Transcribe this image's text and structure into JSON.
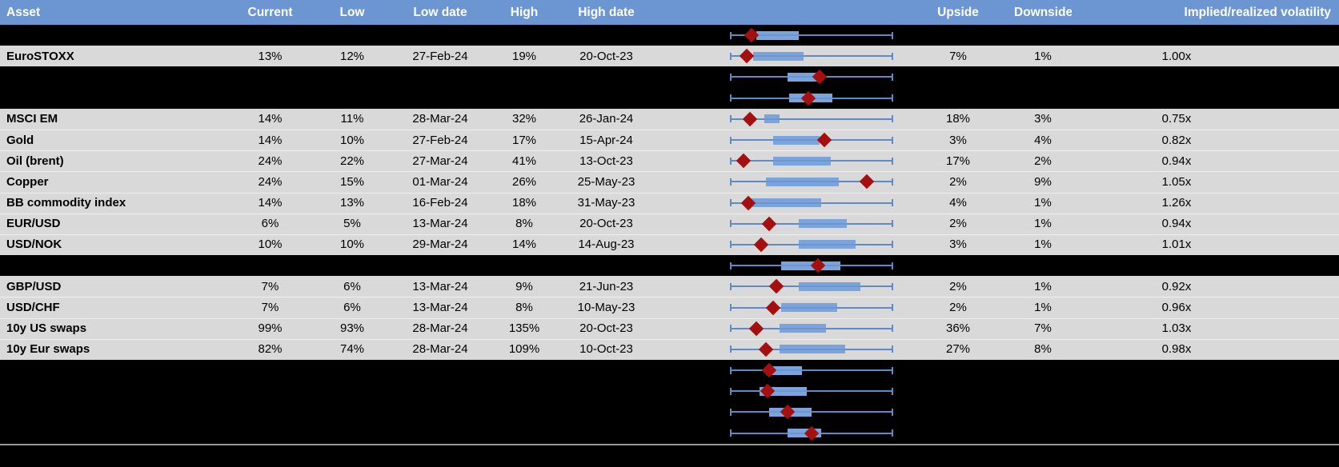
{
  "header": {
    "asset": "Asset",
    "current": "Current",
    "low": "Low",
    "low_date": "Low date",
    "high": "High",
    "high_date": "High date",
    "upside": "Upside",
    "downside": "Downside",
    "implied_realized": "Implied/realized volatility"
  },
  "colors": {
    "header_bg": "#6b96d2",
    "header_text": "#ffffff",
    "body_text": "#000000",
    "row_bg": "#d9d9d9",
    "hidden_bg": "#000000",
    "box_fill": "#7ba4dd",
    "whisker": "#5e8bc7",
    "diamond": "#a40f0f",
    "divider": "#999999"
  },
  "chart_data": {
    "type": "table",
    "encoding": {
      "whisker": "normalized low-to-high 1y range (0 to 1)",
      "box": "shaded middle band of the range, as fractions of the whisker span",
      "diamond": "current level, as fraction of the whisker span"
    },
    "rows": [
      {
        "kind": "hidden",
        "plot": {
          "box": [
            0.16,
            0.42
          ],
          "diamond": 0.13
        }
      },
      {
        "kind": "data",
        "asset": "EuroSTOXX",
        "current": "13%",
        "low": "12%",
        "low_date": "27-Feb-24",
        "high": "19%",
        "high_date": "20-Oct-23",
        "upside": "7%",
        "downside": "1%",
        "implied_realized": "1.00x",
        "plot": {
          "box": [
            0.14,
            0.45
          ],
          "diamond": 0.1
        }
      },
      {
        "kind": "hidden",
        "plot": {
          "box": [
            0.35,
            0.56
          ],
          "diamond": 0.55
        }
      },
      {
        "kind": "hidden",
        "plot": {
          "box": [
            0.36,
            0.63
          ],
          "diamond": 0.48
        }
      },
      {
        "kind": "data",
        "asset": "MSCI EM",
        "current": "14%",
        "low": "11%",
        "low_date": "28-Mar-24",
        "high": "32%",
        "high_date": "26-Jan-24",
        "upside": "18%",
        "downside": "3%",
        "implied_realized": "0.75x",
        "plot": {
          "box": [
            0.21,
            0.3
          ],
          "diamond": 0.12
        }
      },
      {
        "kind": "data",
        "asset": "Gold",
        "current": "14%",
        "low": "10%",
        "low_date": "27-Feb-24",
        "high": "17%",
        "high_date": "15-Apr-24",
        "upside": "3%",
        "downside": "4%",
        "implied_realized": "0.82x",
        "plot": {
          "box": [
            0.26,
            0.55
          ],
          "diamond": 0.58
        }
      },
      {
        "kind": "data",
        "asset": "Oil (brent)",
        "current": "24%",
        "low": "22%",
        "low_date": "27-Mar-24",
        "high": "41%",
        "high_date": "13-Oct-23",
        "upside": "17%",
        "downside": "2%",
        "implied_realized": "0.94x",
        "plot": {
          "box": [
            0.26,
            0.62
          ],
          "diamond": 0.08
        }
      },
      {
        "kind": "data",
        "asset": "Copper",
        "current": "24%",
        "low": "15%",
        "low_date": "01-Mar-24",
        "high": "26%",
        "high_date": "25-May-23",
        "upside": "2%",
        "downside": "9%",
        "implied_realized": "1.05x",
        "plot": {
          "box": [
            0.22,
            0.67
          ],
          "diamond": 0.84
        }
      },
      {
        "kind": "data",
        "asset": "BB commodity index",
        "current": "14%",
        "low": "13%",
        "low_date": "16-Feb-24",
        "high": "18%",
        "high_date": "31-May-23",
        "upside": "4%",
        "downside": "1%",
        "implied_realized": "1.26x",
        "plot": {
          "box": [
            0.13,
            0.56
          ],
          "diamond": 0.11
        }
      },
      {
        "kind": "data",
        "asset": "EUR/USD",
        "current": "6%",
        "low": "5%",
        "low_date": "13-Mar-24",
        "high": "8%",
        "high_date": "20-Oct-23",
        "upside": "2%",
        "downside": "1%",
        "implied_realized": "0.94x",
        "plot": {
          "box": [
            0.42,
            0.72
          ],
          "diamond": 0.24
        }
      },
      {
        "kind": "data",
        "asset": "USD/NOK",
        "current": "10%",
        "low": "10%",
        "low_date": "29-Mar-24",
        "high": "14%",
        "high_date": "14-Aug-23",
        "upside": "3%",
        "downside": "1%",
        "implied_realized": "1.01x",
        "plot": {
          "box": [
            0.42,
            0.77
          ],
          "diamond": 0.19
        }
      },
      {
        "kind": "hidden",
        "plot": {
          "box": [
            0.31,
            0.68
          ],
          "diamond": 0.54
        }
      },
      {
        "kind": "data",
        "asset": "GBP/USD",
        "current": "7%",
        "low": "6%",
        "low_date": "13-Mar-24",
        "high": "9%",
        "high_date": "21-Jun-23",
        "upside": "2%",
        "downside": "1%",
        "implied_realized": "0.92x",
        "plot": {
          "box": [
            0.42,
            0.8
          ],
          "diamond": 0.28
        }
      },
      {
        "kind": "data",
        "asset": "USD/CHF",
        "current": "7%",
        "low": "6%",
        "low_date": "13-Mar-24",
        "high": "8%",
        "high_date": "10-May-23",
        "upside": "2%",
        "downside": "1%",
        "implied_realized": "0.96x",
        "plot": {
          "box": [
            0.31,
            0.66
          ],
          "diamond": 0.26
        }
      },
      {
        "kind": "data",
        "asset": "10y US swaps",
        "current": "99%",
        "low": "93%",
        "low_date": "28-Mar-24",
        "high": "135%",
        "high_date": "20-Oct-23",
        "upside": "36%",
        "downside": "7%",
        "implied_realized": "1.03x",
        "plot": {
          "box": [
            0.3,
            0.59
          ],
          "diamond": 0.16
        }
      },
      {
        "kind": "data",
        "asset": "10y Eur swaps",
        "current": "82%",
        "low": "74%",
        "low_date": "28-Mar-24",
        "high": "109%",
        "high_date": "10-Oct-23",
        "upside": "27%",
        "downside": "8%",
        "implied_realized": "0.98x",
        "plot": {
          "box": [
            0.3,
            0.71
          ],
          "diamond": 0.22
        }
      },
      {
        "kind": "hidden",
        "plot": {
          "box": [
            0.22,
            0.44
          ],
          "diamond": 0.24
        }
      },
      {
        "kind": "hidden",
        "plot": {
          "box": [
            0.18,
            0.47
          ],
          "diamond": 0.23
        }
      },
      {
        "kind": "hidden",
        "plot": {
          "box": [
            0.24,
            0.5
          ],
          "diamond": 0.35
        }
      },
      {
        "kind": "hidden",
        "plot": {
          "box": [
            0.35,
            0.56
          ],
          "diamond": 0.5
        }
      }
    ]
  }
}
